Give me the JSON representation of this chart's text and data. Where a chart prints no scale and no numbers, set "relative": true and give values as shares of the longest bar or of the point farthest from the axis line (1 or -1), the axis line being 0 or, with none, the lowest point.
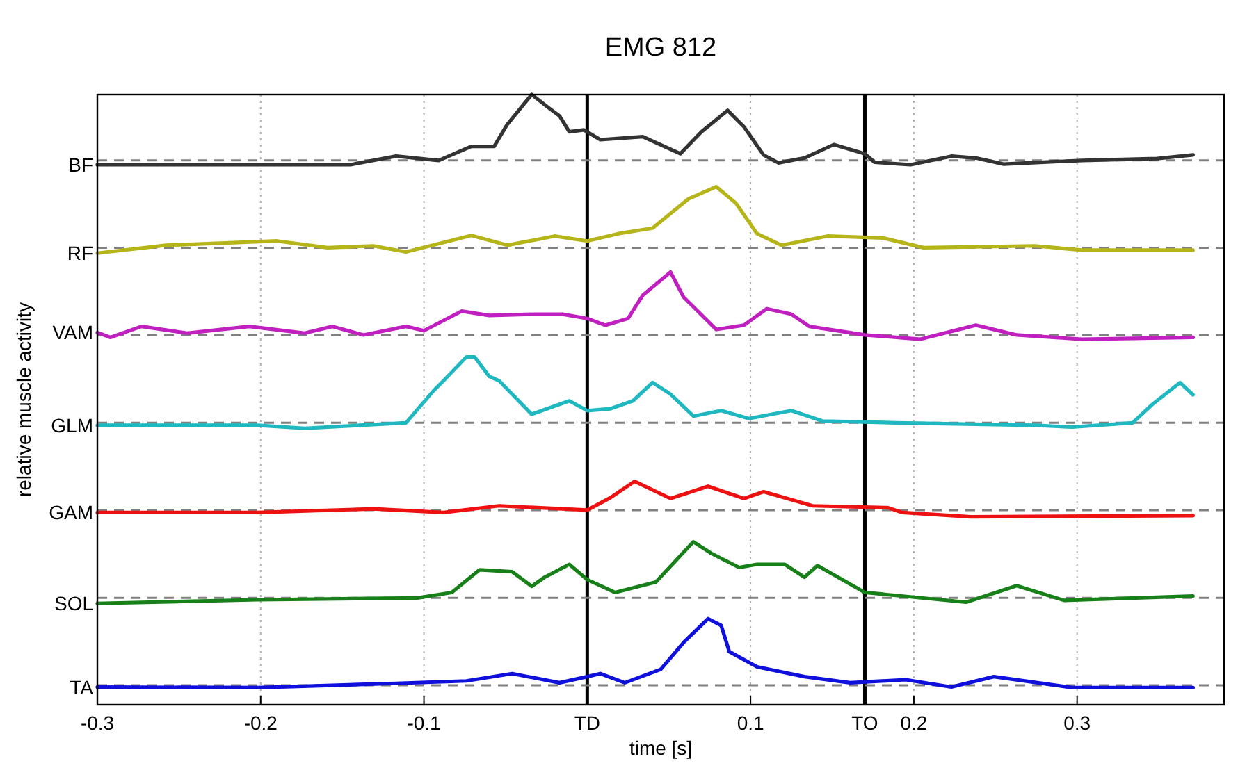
{
  "chart_data": {
    "type": "line",
    "title": "EMG 812",
    "xlabel": "time [s]",
    "ylabel": "relative muscle activity",
    "relative": true,
    "xlim": [
      -0.3,
      0.39
    ],
    "xticks": [
      -0.3,
      -0.2,
      -0.1,
      0.1,
      0.2,
      0.3
    ],
    "grid": "x",
    "line_style": "solid",
    "ref_lines": [
      {
        "axis": "x",
        "value": 0,
        "label": "TD",
        "color": "#000000",
        "line_style": "solid"
      },
      {
        "axis": "x",
        "value": 0.17,
        "label": "TO",
        "color": "#000000",
        "line_style": "solid"
      },
      {
        "axis": "y",
        "value": 0.032,
        "color": "#808080",
        "line_style": "dashed"
      },
      {
        "axis": "y",
        "value": 0.175,
        "color": "#808080",
        "line_style": "dashed"
      },
      {
        "axis": "y",
        "value": 0.319,
        "color": "#808080",
        "line_style": "dashed"
      },
      {
        "axis": "y",
        "value": 0.462,
        "color": "#808080",
        "line_style": "dashed"
      },
      {
        "axis": "y",
        "value": 0.606,
        "color": "#808080",
        "line_style": "dashed"
      },
      {
        "axis": "y",
        "value": 0.749,
        "color": "#808080",
        "line_style": "dashed"
      },
      {
        "axis": "y",
        "value": 0.892,
        "color": "#808080",
        "line_style": "dashed"
      }
    ],
    "series": [
      {
        "name": "BF",
        "color": "#333333",
        "x": [
          -0.3,
          -0.145,
          -0.117,
          -0.091,
          -0.071,
          -0.057,
          -0.049,
          -0.034,
          -0.023,
          -0.017,
          -0.011,
          -0.002,
          0.008,
          0.034,
          0.057,
          0.07,
          0.086,
          0.096,
          0.108,
          0.117,
          0.133,
          0.151,
          0.17,
          0.176,
          0.198,
          0.223,
          0.238,
          0.255,
          0.303,
          0.349,
          0.371
        ],
        "values": [
          0.885,
          0.885,
          0.899,
          0.892,
          0.915,
          0.915,
          0.951,
          1.0,
          0.977,
          0.965,
          0.939,
          0.942,
          0.926,
          0.931,
          0.903,
          0.939,
          0.974,
          0.947,
          0.901,
          0.888,
          0.896,
          0.918,
          0.903,
          0.889,
          0.885,
          0.899,
          0.896,
          0.886,
          0.892,
          0.895,
          0.901
        ]
      },
      {
        "name": "RF",
        "color": "#b5b51a",
        "x": [
          -0.3,
          -0.258,
          -0.19,
          -0.159,
          -0.131,
          -0.111,
          -0.071,
          -0.049,
          -0.02,
          0,
          0.019,
          0.04,
          0.062,
          0.079,
          0.091,
          0.104,
          0.119,
          0.147,
          0.181,
          0.206,
          0.274,
          0.303,
          0.371
        ],
        "values": [
          0.74,
          0.753,
          0.76,
          0.749,
          0.752,
          0.742,
          0.769,
          0.753,
          0.768,
          0.76,
          0.772,
          0.781,
          0.829,
          0.849,
          0.822,
          0.772,
          0.753,
          0.768,
          0.765,
          0.749,
          0.752,
          0.745,
          0.745
        ]
      },
      {
        "name": "VAM",
        "color": "#c020c0",
        "x": [
          -0.3,
          -0.292,
          -0.273,
          -0.245,
          -0.207,
          -0.173,
          -0.156,
          -0.137,
          -0.111,
          -0.1,
          -0.077,
          -0.06,
          -0.032,
          -0.015,
          0,
          0.011,
          0.025,
          0.034,
          0.051,
          0.059,
          0.079,
          0.096,
          0.11,
          0.125,
          0.136,
          0.17,
          0.204,
          0.238,
          0.263,
          0.303,
          0.371
        ],
        "values": [
          0.61,
          0.602,
          0.62,
          0.609,
          0.62,
          0.609,
          0.62,
          0.606,
          0.62,
          0.613,
          0.645,
          0.638,
          0.64,
          0.64,
          0.633,
          0.622,
          0.633,
          0.671,
          0.709,
          0.668,
          0.615,
          0.622,
          0.649,
          0.64,
          0.62,
          0.606,
          0.599,
          0.622,
          0.606,
          0.599,
          0.602
        ]
      },
      {
        "name": "GLM",
        "color": "#20b8c0",
        "x": [
          -0.3,
          -0.202,
          -0.173,
          -0.111,
          -0.094,
          -0.088,
          -0.074,
          -0.069,
          -0.06,
          -0.054,
          -0.034,
          -0.011,
          0,
          0.014,
          0.028,
          0.04,
          0.051,
          0.065,
          0.082,
          0.099,
          0.125,
          0.144,
          0.189,
          0.274,
          0.297,
          0.334,
          0.346,
          0.363,
          0.371
        ],
        "values": [
          0.458,
          0.458,
          0.453,
          0.462,
          0.515,
          0.531,
          0.57,
          0.57,
          0.538,
          0.531,
          0.476,
          0.498,
          0.482,
          0.485,
          0.498,
          0.528,
          0.509,
          0.473,
          0.482,
          0.469,
          0.482,
          0.465,
          0.462,
          0.458,
          0.455,
          0.462,
          0.492,
          0.528,
          0.508
        ]
      },
      {
        "name": "GAM",
        "color": "#ee1111",
        "x": [
          -0.3,
          -0.202,
          -0.131,
          -0.088,
          -0.054,
          0,
          0.014,
          0.029,
          0.051,
          0.074,
          0.096,
          0.108,
          0.138,
          0.184,
          0.193,
          0.235,
          0.371
        ],
        "values": [
          0.315,
          0.315,
          0.321,
          0.315,
          0.326,
          0.319,
          0.339,
          0.366,
          0.338,
          0.358,
          0.338,
          0.349,
          0.326,
          0.323,
          0.315,
          0.308,
          0.31
        ]
      },
      {
        "name": "SOL",
        "color": "#188018",
        "x": [
          -0.3,
          -0.202,
          -0.104,
          -0.083,
          -0.066,
          -0.046,
          -0.034,
          -0.026,
          -0.011,
          0,
          0.017,
          0.042,
          0.065,
          0.076,
          0.093,
          0.104,
          0.121,
          0.133,
          0.141,
          0.17,
          0.232,
          0.263,
          0.292,
          0.371
        ],
        "values": [
          0.166,
          0.172,
          0.175,
          0.184,
          0.221,
          0.218,
          0.194,
          0.209,
          0.23,
          0.205,
          0.184,
          0.201,
          0.267,
          0.248,
          0.225,
          0.23,
          0.23,
          0.209,
          0.228,
          0.184,
          0.168,
          0.195,
          0.171,
          0.178
        ]
      },
      {
        "name": "TA",
        "color": "#1010dd",
        "x": [
          -0.3,
          -0.202,
          -0.117,
          -0.074,
          -0.046,
          -0.017,
          0,
          0.008,
          0.023,
          0.045,
          0.059,
          0.074,
          0.082,
          0.087,
          0.104,
          0.133,
          0.161,
          0.195,
          0.223,
          0.249,
          0.297,
          0.371
        ],
        "values": [
          0.029,
          0.028,
          0.035,
          0.039,
          0.051,
          0.036,
          0.046,
          0.051,
          0.036,
          0.058,
          0.102,
          0.141,
          0.13,
          0.087,
          0.062,
          0.046,
          0.036,
          0.041,
          0.029,
          0.046,
          0.028,
          0.028
        ]
      }
    ]
  }
}
